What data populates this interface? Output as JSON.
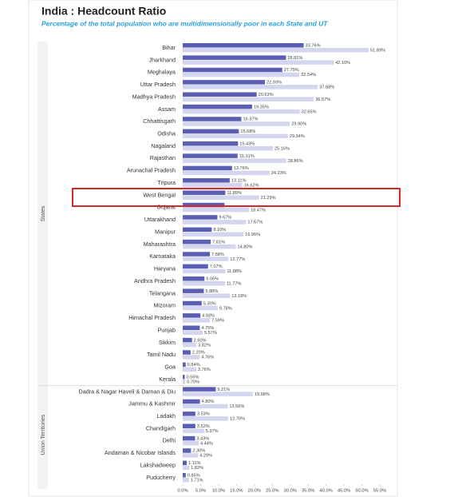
{
  "chart_data": {
    "type": "bar",
    "orientation": "horizontal",
    "title": "India : Headcount Ratio",
    "subtitle": "Percentage of the total population who are multidimensionally poor in each State and UT",
    "xlim": [
      0,
      55
    ],
    "xticks": [
      {
        "value": 0,
        "label": "0.0%"
      },
      {
        "value": 5,
        "label": "5.0%"
      },
      {
        "value": 10,
        "label": "10.0%"
      },
      {
        "value": 15,
        "label": "15.0%"
      },
      {
        "value": 20,
        "label": "20.0%"
      },
      {
        "value": 25,
        "label": "25.0%"
      },
      {
        "value": 30,
        "label": "30.0%"
      },
      {
        "value": 35,
        "label": "35.0%"
      },
      {
        "value": 40,
        "label": "40.0%"
      },
      {
        "value": 45,
        "label": "45.0%"
      },
      {
        "value": 50,
        "label": "50.0%"
      },
      {
        "value": 55,
        "label": "55.0%"
      }
    ],
    "groups": [
      {
        "label": "States",
        "categories": [
          "Bihar",
          "Jharkhand",
          "Meghalaya",
          "Uttar Pradesh",
          "Madhya Pradesh",
          "Assam",
          "Chhattisgarh",
          "Odisha",
          "Nagaland",
          "Rajasthan",
          "Arunachal Pradesh",
          "Tripura",
          "West Bengal",
          "Gujarat",
          "Uttarakhand",
          "Manipur",
          "Maharashtra",
          "Karnataka",
          "Haryana",
          "Andhra Pradesh",
          "Telangana",
          "Mizoram",
          "Himachal Pradesh",
          "Punjab",
          "Sikkim",
          "Tamil Nadu",
          "Goa",
          "Kerala"
        ],
        "series": [
          {
            "color": "#5b5fb3",
            "values": [
              33.76,
              28.81,
              27.79,
              22.93,
              20.63,
              19.35,
              16.37,
              15.68,
              15.43,
              15.31,
              13.76,
              13.11,
              11.89,
              11.66,
              9.67,
              8.1,
              7.81,
              7.58,
              7.07,
              6.06,
              5.88,
              5.3,
              4.93,
              4.75,
              2.6,
              2.2,
              0.84,
              0.55
            ],
            "value_labels": [
              "33.76%",
              "28.81%",
              "27.79%",
              "22.93%",
              "20.63%",
              "19.35%",
              "16.37%",
              "15.68%",
              "15.43%",
              "15.31%",
              "13.76%",
              "13.11%",
              "11.89%",
              null,
              "9.67%",
              "8.10%",
              "7.81%",
              "7.58%",
              "7.07%",
              "6.06%",
              "5.88%",
              "5.30%",
              "4.93%",
              "4.75%",
              "2.60%",
              "2.20%",
              "0.84%",
              "0.55%"
            ]
          },
          {
            "color": "#d4d5ee",
            "values": [
              51.89,
              42.1,
              32.54,
              37.68,
              36.57,
              32.65,
              29.9,
              29.34,
              25.16,
              28.86,
              24.23,
              16.62,
              21.29,
              18.47,
              17.67,
              16.96,
              14.8,
              12.77,
              11.88,
              11.77,
              13.18,
              9.78,
              7.59,
              5.57,
              3.82,
              4.76,
              3.76,
              0.7
            ],
            "value_labels": [
              "51.89%",
              "42.10%",
              "32.54%",
              "37.68%",
              "36.57%",
              "32.65%",
              "29.90%",
              "29.34%",
              "25.16%",
              "28.86%",
              "24.23%",
              "16.62%",
              "21.29%",
              "18.47%",
              "17.67%",
              "16.96%",
              "14.80%",
              "12.77%",
              "11.88%",
              "11.77%",
              "13.18%",
              "9.78%",
              "7.59%",
              "5.57%",
              "3.82%",
              "4.76%",
              "3.76%",
              "0.70%"
            ]
          }
        ]
      },
      {
        "label": "Union Territories",
        "categories": [
          "Dadra & Nagar Haveli & Daman & Diu",
          "Jammu & Kashmir",
          "Ladakh",
          "Chandigarh",
          "Delhi",
          "Andaman & Nicobar Islands",
          "Lakshadweep",
          "Puducherry"
        ],
        "series": [
          {
            "color": "#5b5fb3",
            "values": [
              9.21,
              4.8,
              3.53,
              3.52,
              3.43,
              2.3,
              1.11,
              0.85
            ],
            "value_labels": [
              "9.21%",
              "4.80%",
              "3.53%",
              "3.52%",
              "3.43%",
              "2.30%",
              "1.11%",
              "0.85%"
            ]
          },
          {
            "color": "#d4d5ee",
            "values": [
              19.58,
              12.56,
              12.7,
              5.97,
              4.44,
              4.29,
              1.82,
              1.71
            ],
            "value_labels": [
              "19.58%",
              "12.56%",
              "12.70%",
              "5.97%",
              "4.44%",
              "4.29%",
              "1.82%",
              "1.71%"
            ]
          }
        ]
      }
    ]
  }
}
